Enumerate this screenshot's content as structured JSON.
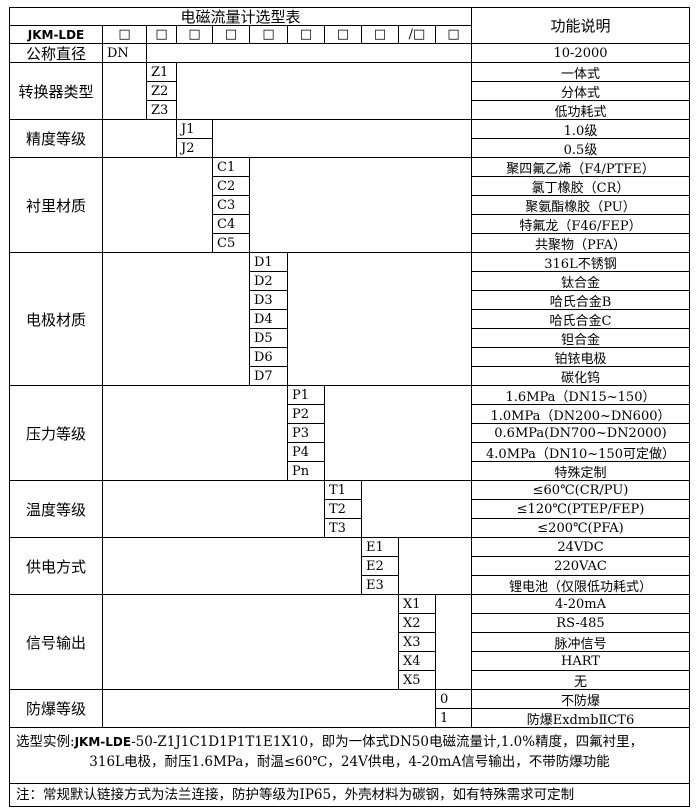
{
  "title": "电磁流量计选型表",
  "function_header": "功能说明",
  "model_prefix": "JKM-LDE",
  "code_boxes": [
    "□",
    "□",
    "□",
    "□",
    "□",
    "□",
    "□",
    "□",
    "/□",
    "□"
  ],
  "sections": [
    {
      "label": "公称直径",
      "col": 1,
      "codes": [
        "DN"
      ],
      "descriptions": [
        "10-2000"
      ]
    },
    {
      "label": "转换器类型",
      "col": 2,
      "codes": [
        "Z1",
        "Z2",
        "Z3"
      ],
      "descriptions": [
        "一体式",
        "分体式",
        "低功耗式"
      ]
    },
    {
      "label": "精度等级",
      "col": 3,
      "codes": [
        "J1",
        "J2"
      ],
      "descriptions": [
        "1.0级",
        "0.5级"
      ]
    },
    {
      "label": "衬里材质",
      "col": 4,
      "codes": [
        "C1",
        "C2",
        "C3",
        "C4",
        "C5"
      ],
      "descriptions": [
        "聚四氟乙烯（F4/PTFE）",
        "氯丁橡胶（CR）",
        "聚氨酯橡胶（PU）",
        "特氟龙（F46/FEP）",
        "共聚物（PFA）"
      ]
    },
    {
      "label": "电极材质",
      "col": 5,
      "codes": [
        "D1",
        "D2",
        "D3",
        "D4",
        "D5",
        "D6",
        "D7"
      ],
      "descriptions": [
        "316L不锈钢",
        "钛合金",
        "哈氏合金B",
        "哈氏合金C",
        "钽合金",
        "铂铱电极",
        "碳化钨"
      ]
    },
    {
      "label": "压力等级",
      "col": 6,
      "codes": [
        "P1",
        "P2",
        "P3",
        "P4",
        "Pn"
      ],
      "descriptions": [
        "1.6MPa（DN15~150）",
        "1.0MPa（DN200~DN600）",
        "0.6MPa(DN700~DN2000)",
        "4.0MPa（DN10~150可定做）",
        "特殊定制"
      ]
    },
    {
      "label": "温度等级",
      "col": 7,
      "codes": [
        "T1",
        "T2",
        "T3"
      ],
      "descriptions": [
        "≤60℃(CR/PU)",
        "≤120℃(PTEP/FEP)",
        "≤200℃(PFA)"
      ]
    },
    {
      "label": "供电方式",
      "col": 8,
      "codes": [
        "E1",
        "E2",
        "E3"
      ],
      "descriptions": [
        "24VDC",
        "220VAC",
        "锂电池（仅限低功耗式）"
      ]
    },
    {
      "label": "信号输出",
      "col": 9,
      "codes": [
        "X1",
        "X2",
        "X3",
        "X4",
        "X5"
      ],
      "descriptions": [
        "4-20mA",
        "RS-485",
        "脉冲信号",
        "HART",
        "无"
      ]
    },
    {
      "label": "防爆等级",
      "col": 10,
      "codes": [
        "0",
        "1"
      ],
      "descriptions": [
        "不防爆",
        "防爆ExdmbⅡCT6"
      ]
    }
  ],
  "example": {
    "prefix": "选型实例:",
    "model": "JKM-LDE",
    "line1": "-50-Z1J1C1D1P1T1E1X10，即为一体式DN50电磁流量计,1.0%精度，四氟衬里，",
    "line2": "316L电极，耐压1.6MPa，耐温≤60℃，24V供电，4-20mA信号输出，不带防爆功能"
  },
  "note": "注：常规默认链接方式为法兰连接，防护等级为IP65，外壳材料为碳钢，如有特殊需求可定制"
}
